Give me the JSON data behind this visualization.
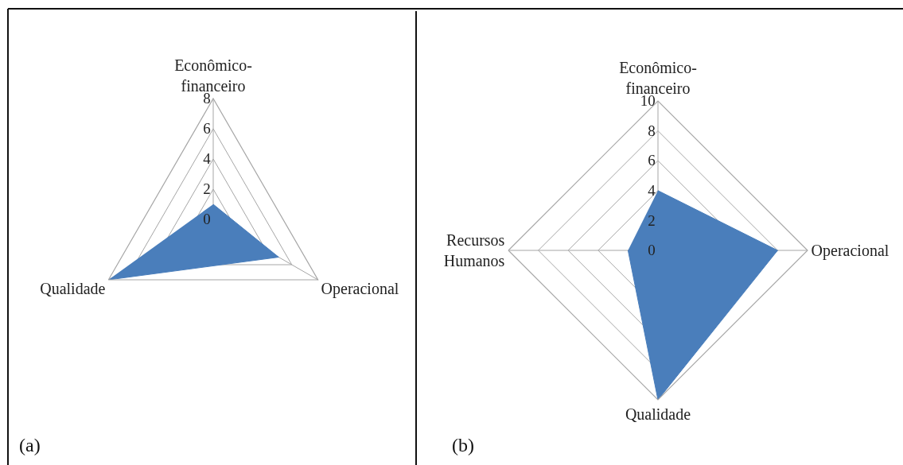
{
  "chart_data": [
    {
      "type": "radar",
      "categories": [
        "Econômico-financeiro",
        "Operacional",
        "Qualidade"
      ],
      "series": [
        {
          "color": "#4a7ebb",
          "values": [
            1,
            5,
            8
          ]
        }
      ],
      "ylim": [
        0,
        8
      ],
      "yticks": [
        0,
        2,
        4,
        6,
        8
      ],
      "grid": true,
      "annotations": [
        "(a)"
      ]
    },
    {
      "type": "radar",
      "categories": [
        "Econômico-financeiro",
        "Operacional",
        "Qualidade",
        "Recursos Humanos"
      ],
      "series": [
        {
          "color": "#4a7ebb",
          "values": [
            4,
            8,
            10,
            2
          ]
        }
      ],
      "ylim": [
        0,
        10
      ],
      "yticks": [
        0,
        2,
        4,
        6,
        8,
        10
      ],
      "grid": true,
      "annotations": [
        "(b)"
      ]
    }
  ]
}
